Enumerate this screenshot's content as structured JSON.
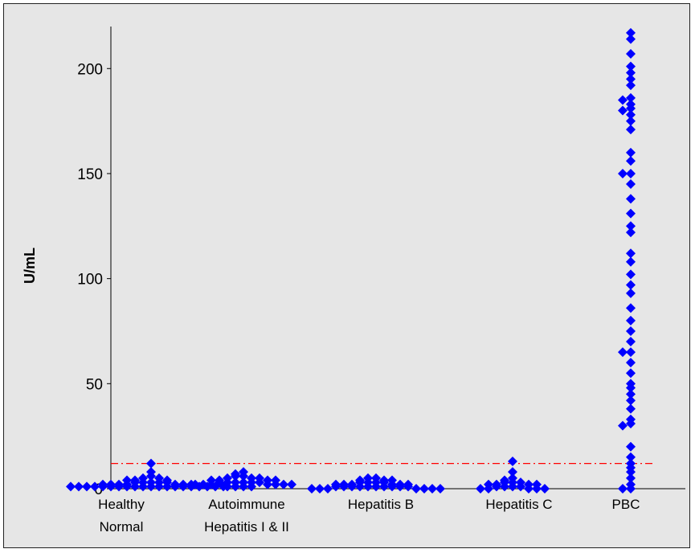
{
  "chart_data": {
    "type": "scatter",
    "ylabel": "U/mL",
    "ylim": [
      0,
      220
    ],
    "yticks": [
      "0",
      "50",
      "100",
      "150",
      "200"
    ],
    "ytick_values": [
      0,
      50,
      100,
      150,
      200
    ],
    "categories": [
      [
        "Healthy",
        "Normal"
      ],
      [
        "Autoimmune",
        "Hepatitis I & II"
      ],
      [
        "Hepatitis B"
      ],
      [
        "Hepatitis C"
      ],
      [
        "PBC"
      ]
    ],
    "cutoff": 12,
    "marker_color": "#0000ff",
    "cutoff_color": "#ff0000",
    "background": "#e6e6e6",
    "series": [
      {
        "category_index": 0,
        "values": [
          12,
          8,
          6,
          5,
          5,
          4,
          4,
          4,
          3,
          3,
          3,
          3,
          3,
          2,
          2,
          2,
          2,
          2,
          2,
          2,
          1,
          1,
          1,
          1,
          1,
          1,
          1,
          1,
          1,
          1,
          1,
          1,
          1,
          1,
          1,
          1,
          1,
          1,
          1,
          1
        ]
      },
      {
        "category_index": 1,
        "values": [
          8,
          7,
          6,
          6,
          5,
          5,
          5,
          4,
          4,
          4,
          4,
          3,
          3,
          3,
          3,
          3,
          3,
          2,
          2,
          2,
          2,
          2,
          2,
          2,
          1,
          1,
          1,
          1
        ]
      },
      {
        "category_index": 2,
        "values": [
          5,
          5,
          4,
          4,
          4,
          3,
          3,
          3,
          3,
          2,
          2,
          2,
          2,
          2,
          2,
          1,
          1,
          1,
          1,
          1,
          1,
          1,
          1,
          1,
          1,
          0,
          0,
          0,
          0,
          0,
          0,
          0
        ]
      },
      {
        "category_index": 3,
        "values": [
          13,
          8,
          5,
          4,
          3,
          3,
          3,
          2,
          2,
          2,
          2,
          1,
          1,
          1,
          1,
          0,
          0,
          0,
          0,
          0
        ]
      },
      {
        "category_index": 4,
        "values": [
          217,
          214,
          207,
          201,
          198,
          195,
          192,
          186,
          185,
          183,
          181,
          180,
          178,
          175,
          171,
          160,
          156,
          150,
          150,
          145,
          138,
          131,
          125,
          122,
          112,
          108,
          102,
          97,
          93,
          86,
          80,
          75,
          70,
          65,
          65,
          60,
          55,
          50,
          48,
          45,
          42,
          38,
          33,
          31,
          30,
          20,
          15,
          12,
          10,
          8,
          5,
          2,
          0,
          0
        ]
      }
    ]
  }
}
